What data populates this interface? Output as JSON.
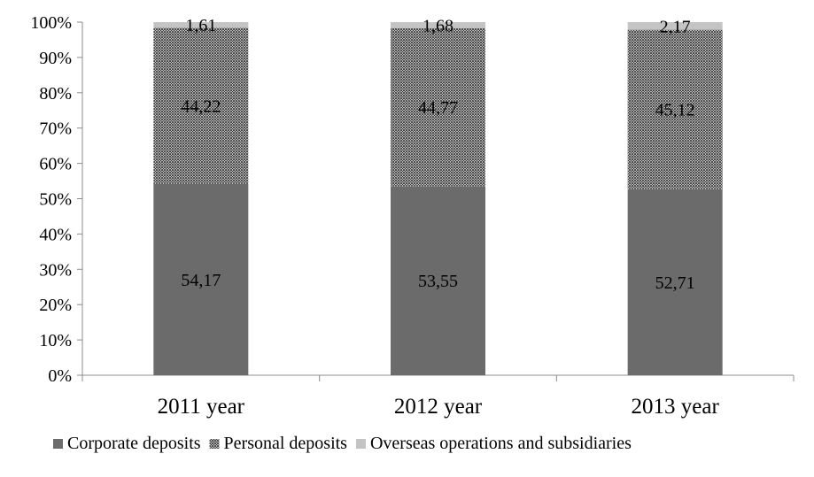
{
  "chart_data": {
    "type": "bar",
    "stacked": true,
    "percent": true,
    "categories": [
      "2011 year",
      "2012 year",
      "2013 year"
    ],
    "series": [
      {
        "name": "Corporate deposits",
        "values": [
          54.17,
          53.55,
          52.71
        ],
        "labels": [
          "54,17",
          "53,55",
          "52,71"
        ],
        "color": "#6b6b6b",
        "fill": "solid"
      },
      {
        "name": "Personal deposits",
        "values": [
          44.22,
          44.77,
          45.12
        ],
        "labels": [
          "44,22",
          "44,77",
          "45,12"
        ],
        "color": "#4a4a4a",
        "fill": "crosshatch"
      },
      {
        "name": "Overseas operations and subsidiaries",
        "values": [
          1.61,
          1.68,
          2.17
        ],
        "labels": [
          "1,61",
          "1,68",
          "2,17"
        ],
        "color": "#c4c4c4",
        "fill": "solid"
      }
    ],
    "ylim": [
      0,
      100
    ],
    "yticks": [
      "0%",
      "10%",
      "20%",
      "30%",
      "40%",
      "50%",
      "60%",
      "70%",
      "80%",
      "90%",
      "100%"
    ],
    "grid": false,
    "legend_position": "bottom"
  }
}
